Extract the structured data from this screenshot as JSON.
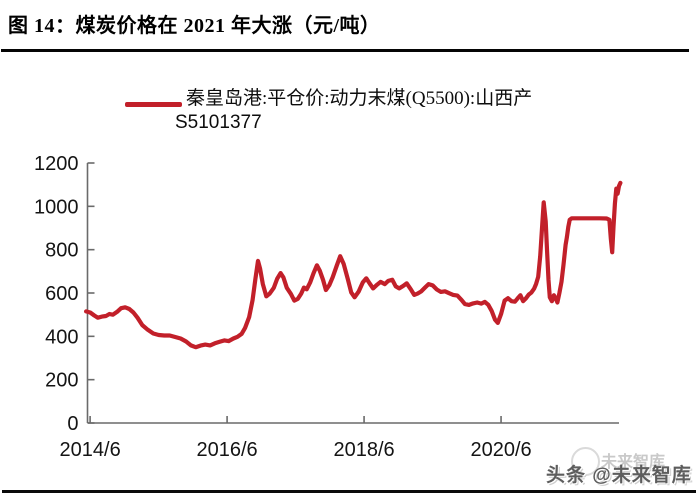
{
  "header": {
    "title": "图 14：煤炭价格在 2021 年大涨（元/吨）"
  },
  "legend": {
    "label_line1": "秦皇岛港:平仓价:动力末煤(Q5500):山西产",
    "label_line2": "S5101377"
  },
  "watermark": {
    "main": "头条 @未来智库",
    "ghost": "未来智库"
  },
  "colors": {
    "series_red": "#c2202a",
    "axis_gray": "#6a6a6a",
    "tick_label": "#141414",
    "watermark_gray": "#5d5d5d",
    "watermark_ghost": "#c9c9c9"
  },
  "chart_data": {
    "type": "line",
    "title": "图 14：煤炭价格在 2021 年大涨（元/吨）",
    "unit": "元/吨",
    "legend_entries": [
      "秦皇岛港:平仓价:动力末煤(Q5500):山西产 S5101377"
    ],
    "legend_position": "top",
    "grid": false,
    "xlabel": "",
    "ylabel": "",
    "ylim": [
      0,
      1200
    ],
    "y_ticks": [
      0,
      200,
      400,
      600,
      800,
      1000,
      1200
    ],
    "xlim": [
      2014.42,
      2022.18
    ],
    "x_ticks": [
      {
        "t": 2014.458,
        "label": "2014/6"
      },
      {
        "t": 2016.458,
        "label": "2016/6"
      },
      {
        "t": 2018.458,
        "label": "2018/6"
      },
      {
        "t": 2020.458,
        "label": "2020/6"
      }
    ],
    "series": [
      {
        "name": "秦皇岛港:平仓价:动力末煤(Q5500):山西产 S5101377",
        "color": "#c2202a",
        "points": [
          [
            2014.4,
            515
          ],
          [
            2014.46,
            510
          ],
          [
            2014.52,
            496
          ],
          [
            2014.57,
            486
          ],
          [
            2014.63,
            491
          ],
          [
            2014.69,
            494
          ],
          [
            2014.74,
            503
          ],
          [
            2014.79,
            500
          ],
          [
            2014.85,
            513
          ],
          [
            2014.91,
            530
          ],
          [
            2014.97,
            534
          ],
          [
            2015.03,
            526
          ],
          [
            2015.09,
            510
          ],
          [
            2015.15,
            486
          ],
          [
            2015.22,
            452
          ],
          [
            2015.3,
            430
          ],
          [
            2015.38,
            413
          ],
          [
            2015.46,
            406
          ],
          [
            2015.54,
            404
          ],
          [
            2015.62,
            404
          ],
          [
            2015.7,
            397
          ],
          [
            2015.78,
            390
          ],
          [
            2015.86,
            376
          ],
          [
            2015.93,
            358
          ],
          [
            2016.0,
            350
          ],
          [
            2016.07,
            357
          ],
          [
            2016.14,
            362
          ],
          [
            2016.21,
            358
          ],
          [
            2016.28,
            368
          ],
          [
            2016.35,
            375
          ],
          [
            2016.42,
            381
          ],
          [
            2016.48,
            378
          ],
          [
            2016.55,
            390
          ],
          [
            2016.61,
            398
          ],
          [
            2016.67,
            411
          ],
          [
            2016.72,
            438
          ],
          [
            2016.78,
            488
          ],
          [
            2016.83,
            568
          ],
          [
            2016.87,
            662
          ],
          [
            2016.91,
            748
          ],
          [
            2016.94,
            712
          ],
          [
            2016.98,
            642
          ],
          [
            2017.03,
            585
          ],
          [
            2017.08,
            597
          ],
          [
            2017.14,
            624
          ],
          [
            2017.19,
            666
          ],
          [
            2017.24,
            692
          ],
          [
            2017.28,
            672
          ],
          [
            2017.33,
            624
          ],
          [
            2017.39,
            596
          ],
          [
            2017.44,
            565
          ],
          [
            2017.49,
            573
          ],
          [
            2017.54,
            597
          ],
          [
            2017.58,
            625
          ],
          [
            2017.62,
            617
          ],
          [
            2017.67,
            648
          ],
          [
            2017.72,
            691
          ],
          [
            2017.77,
            728
          ],
          [
            2017.81,
            704
          ],
          [
            2017.86,
            660
          ],
          [
            2017.9,
            614
          ],
          [
            2017.95,
            636
          ],
          [
            2018.0,
            673
          ],
          [
            2018.06,
            727
          ],
          [
            2018.11,
            770
          ],
          [
            2018.16,
            734
          ],
          [
            2018.22,
            664
          ],
          [
            2018.27,
            603
          ],
          [
            2018.32,
            580
          ],
          [
            2018.38,
            607
          ],
          [
            2018.44,
            649
          ],
          [
            2018.49,
            668
          ],
          [
            2018.54,
            644
          ],
          [
            2018.59,
            621
          ],
          [
            2018.65,
            639
          ],
          [
            2018.7,
            651
          ],
          [
            2018.76,
            641
          ],
          [
            2018.81,
            656
          ],
          [
            2018.87,
            661
          ],
          [
            2018.92,
            631
          ],
          [
            2018.97,
            621
          ],
          [
            2019.03,
            633
          ],
          [
            2019.08,
            645
          ],
          [
            2019.14,
            617
          ],
          [
            2019.19,
            591
          ],
          [
            2019.24,
            597
          ],
          [
            2019.29,
            607
          ],
          [
            2019.35,
            626
          ],
          [
            2019.4,
            641
          ],
          [
            2019.46,
            635
          ],
          [
            2019.52,
            616
          ],
          [
            2019.58,
            605
          ],
          [
            2019.64,
            608
          ],
          [
            2019.7,
            599
          ],
          [
            2019.76,
            591
          ],
          [
            2019.82,
            588
          ],
          [
            2019.88,
            568
          ],
          [
            2019.93,
            549
          ],
          [
            2019.99,
            545
          ],
          [
            2020.05,
            552
          ],
          [
            2020.11,
            556
          ],
          [
            2020.17,
            551
          ],
          [
            2020.22,
            559
          ],
          [
            2020.27,
            546
          ],
          [
            2020.32,
            518
          ],
          [
            2020.37,
            477
          ],
          [
            2020.41,
            462
          ],
          [
            2020.46,
            505
          ],
          [
            2020.51,
            565
          ],
          [
            2020.56,
            576
          ],
          [
            2020.61,
            562
          ],
          [
            2020.66,
            560
          ],
          [
            2020.7,
            575
          ],
          [
            2020.74,
            590
          ],
          [
            2020.78,
            562
          ],
          [
            2020.82,
            575
          ],
          [
            2020.86,
            592
          ],
          [
            2020.9,
            602
          ],
          [
            2020.94,
            620
          ],
          [
            2020.97,
            642
          ],
          [
            2021.0,
            675
          ],
          [
            2021.03,
            770
          ],
          [
            2021.06,
            920
          ],
          [
            2021.08,
            1018
          ],
          [
            2021.11,
            930
          ],
          [
            2021.13,
            790
          ],
          [
            2021.15,
            660
          ],
          [
            2021.17,
            580
          ],
          [
            2021.2,
            562
          ],
          [
            2021.23,
            590
          ],
          [
            2021.26,
            572
          ],
          [
            2021.28,
            556
          ],
          [
            2021.31,
            600
          ],
          [
            2021.34,
            652
          ],
          [
            2021.37,
            730
          ],
          [
            2021.4,
            822
          ],
          [
            2021.42,
            858
          ],
          [
            2021.44,
            905
          ],
          [
            2021.46,
            938
          ],
          [
            2021.49,
            945
          ],
          [
            2021.6,
            945
          ],
          [
            2021.75,
            945
          ],
          [
            2021.9,
            945
          ],
          [
            2022.0,
            944
          ],
          [
            2022.04,
            938
          ],
          [
            2022.06,
            852
          ],
          [
            2022.08,
            788
          ],
          [
            2022.1,
            905
          ],
          [
            2022.12,
            1012
          ],
          [
            2022.14,
            1082
          ],
          [
            2022.16,
            1058
          ],
          [
            2022.18,
            1094
          ],
          [
            2022.2,
            1108
          ]
        ]
      }
    ]
  }
}
